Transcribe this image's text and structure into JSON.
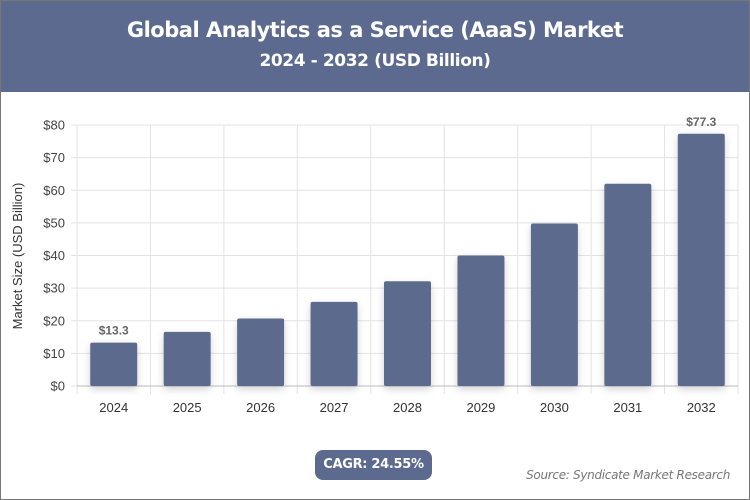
{
  "header": {
    "title": "Global Analytics as a Service (AaaS) Market",
    "subtitle": "2024 - 2032 (USD Billion)"
  },
  "chart_data": {
    "type": "bar",
    "categories": [
      "2024",
      "2025",
      "2026",
      "2027",
      "2028",
      "2029",
      "2030",
      "2031",
      "2032"
    ],
    "values": [
      13.3,
      16.6,
      20.7,
      25.8,
      32.1,
      40.0,
      49.8,
      62.0,
      77.3
    ],
    "data_labels": {
      "0": "$13.3",
      "8": "$77.3"
    },
    "ylabel": "Market Size (USD Billion)",
    "xlabel": "",
    "ylim": [
      0,
      80
    ],
    "yticks": [
      0,
      10,
      20,
      30,
      40,
      50,
      60,
      70,
      80
    ],
    "ytick_labels": [
      "$0",
      "$10",
      "$20",
      "$30",
      "$40",
      "$50",
      "$60",
      "$70",
      "$80"
    ],
    "grid": true,
    "bar_color": "#5b6a8e"
  },
  "footer": {
    "cagr": "CAGR: 24.55%",
    "source": "Source: Syndicate Market Research"
  }
}
